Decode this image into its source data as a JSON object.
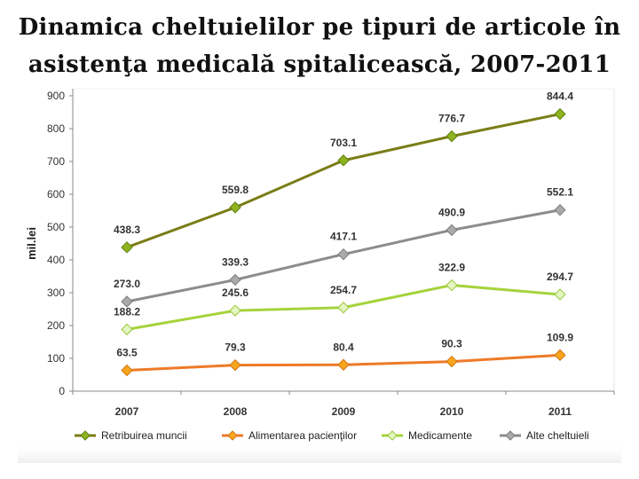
{
  "title": {
    "line1": "Dinamica cheltuielilor pe tipuri de articole în",
    "line2": "asistenţa medicală spitalicească, 2007-2011"
  },
  "chart_data": {
    "type": "line",
    "categories": [
      "2007",
      "2008",
      "2009",
      "2010",
      "2011"
    ],
    "ylabel": "mil.lei",
    "xlabel": "",
    "ylim": [
      0,
      900
    ],
    "yticks": [
      0,
      100,
      200,
      300,
      400,
      500,
      600,
      700,
      800,
      900
    ],
    "grid": false,
    "legend_position": "bottom",
    "series": [
      {
        "name": "Retribuirea muncii",
        "values": [
          438.3,
          559.8,
          703.1,
          776.7,
          844.4
        ],
        "labels": [
          "438.3",
          "559.8",
          "703.1",
          "776.7",
          "844.4"
        ],
        "line_color": "#7a7d16",
        "marker_color": "#8fb31e",
        "marker_stroke": "#5f7f10"
      },
      {
        "name": "Alimentarea pacienţilor",
        "values": [
          63.5,
          79.3,
          80.4,
          90.3,
          109.9
        ],
        "labels": [
          "63.5",
          "79.3",
          "80.4",
          "90.3",
          "109.9"
        ],
        "line_color": "#ee7a28",
        "marker_color": "#f7a51c",
        "marker_stroke": "#d4781a"
      },
      {
        "name": "Medicamente",
        "values": [
          188.2,
          245.6,
          254.7,
          322.9,
          294.7
        ],
        "labels": [
          "188.2",
          "245.6",
          "254.7",
          "322.9",
          "294.7"
        ],
        "line_color": "#a5d33b",
        "marker_color": "#e3f5c1",
        "marker_stroke": "#9cc93a"
      },
      {
        "name": "Alte cheltuieli",
        "values": [
          273.0,
          339.3,
          417.1,
          490.9,
          552.1
        ],
        "labels": [
          "273.0",
          "339.3",
          "417.1",
          "490.9",
          "552.1"
        ],
        "line_color": "#8c8c8c",
        "marker_color": "#a9a9a9",
        "marker_stroke": "#7d7d7d"
      }
    ]
  }
}
